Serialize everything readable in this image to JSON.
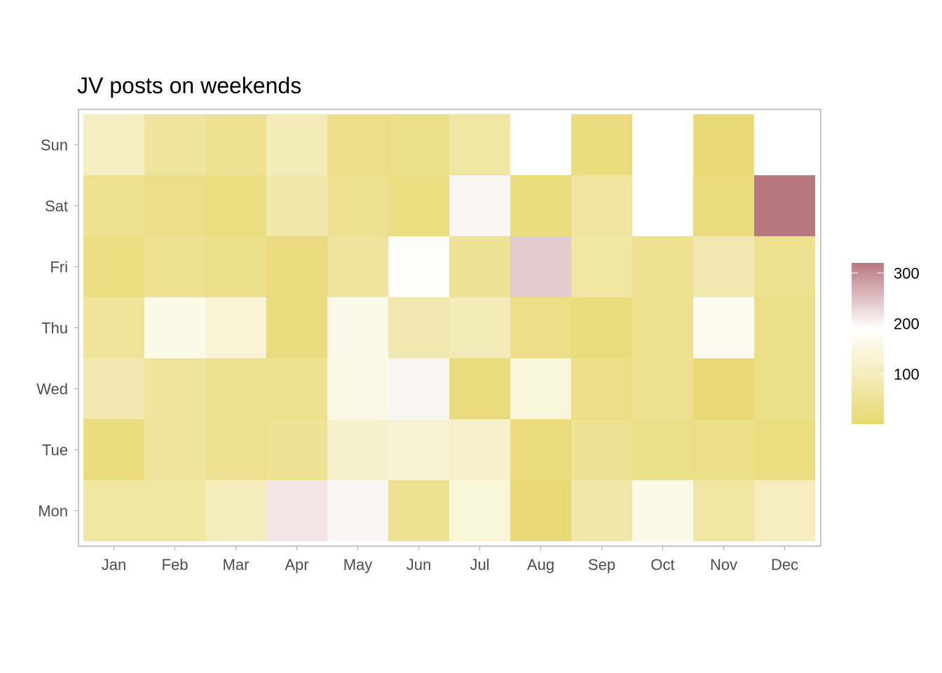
{
  "chart_data": {
    "type": "heatmap",
    "title": "JV posts on weekends",
    "xlabel": "",
    "ylabel": "",
    "x_categories": [
      "Jan",
      "Feb",
      "Mar",
      "Apr",
      "May",
      "Jun",
      "Jul",
      "Aug",
      "Sep",
      "Oct",
      "Nov",
      "Dec"
    ],
    "y_categories": [
      "Sun",
      "Sat",
      "Fri",
      "Thu",
      "Wed",
      "Tue",
      "Mon"
    ],
    "values": [
      [
        110,
        60,
        45,
        95,
        30,
        35,
        70,
        null,
        20,
        null,
        10,
        null
      ],
      [
        40,
        30,
        25,
        75,
        45,
        25,
        200,
        20,
        65,
        null,
        20,
        320
      ],
      [
        25,
        40,
        35,
        20,
        60,
        180,
        50,
        240,
        70,
        40,
        85,
        40
      ],
      [
        55,
        160,
        135,
        20,
        160,
        85,
        95,
        30,
        15,
        40,
        170,
        35
      ],
      [
        85,
        60,
        45,
        40,
        155,
        200,
        20,
        140,
        30,
        45,
        10,
        35
      ],
      [
        15,
        60,
        45,
        50,
        125,
        130,
        120,
        20,
        50,
        35,
        30,
        25
      ],
      [
        70,
        70,
        100,
        215,
        200,
        45,
        140,
        10,
        75,
        160,
        70,
        105
      ]
    ],
    "color_scale": {
      "min": 1,
      "max": 320,
      "stops": [
        {
          "value": 1,
          "color": "#e8d870"
        },
        {
          "value": 190,
          "color": "#ffffff"
        },
        {
          "value": 320,
          "color": "#b87880"
        }
      ],
      "na_color": "#ffffff"
    },
    "legend": {
      "position": "right",
      "ticks": [
        "100",
        "200",
        "300"
      ],
      "tick_values": [
        100,
        200,
        300
      ]
    },
    "grid": false,
    "panel_border_color": "#b3b3b3"
  }
}
